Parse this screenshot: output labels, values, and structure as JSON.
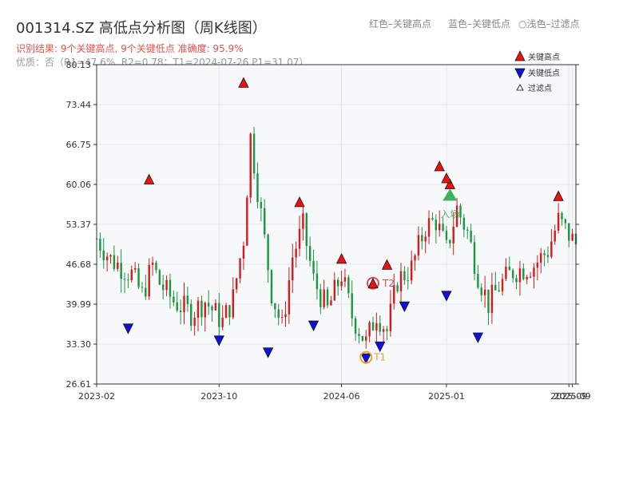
{
  "title": "001314.SZ 高低点分析图（周K线图）",
  "top_legend": {
    "red": "红色–关键高点",
    "blue": "蓝色–关键低点",
    "light": "○浅色–过滤点"
  },
  "result_line": "识别结果: 9个关键高点, 9个关键低点  准确度: 95.9%",
  "detail_line": "优质：否（R1=47.6%, R2=0.78；T1=2024-07-26 P1=31.07）",
  "colors": {
    "up": "#d7191c",
    "down": "#1a9641",
    "high": "#ee1111",
    "low": "#1111dd",
    "t1": "#f0a030",
    "entry": "#2aa84a"
  },
  "chart_data": {
    "type": "candlestick",
    "ylim": [
      26.61,
      80.13
    ],
    "y_ticks": [
      "26.61",
      "33.30",
      "39.99",
      "46.68",
      "53.37",
      "60.06",
      "66.75",
      "73.44",
      "80.13"
    ],
    "x_ticks": [
      {
        "label": "2023-02",
        "date": "2023-02-03"
      },
      {
        "label": "2023-10",
        "date": "2023-10-06"
      },
      {
        "label": "2024-06",
        "date": "2024-06-07"
      },
      {
        "label": "2025-01",
        "date": "2025-01-03"
      },
      {
        "label": "2025-09",
        "date": "2025-09-05"
      },
      {
        "label": "2025-09",
        "date": "2025-09-12"
      }
    ],
    "x_range": [
      "2023-02-03",
      "2025-09-19"
    ],
    "close_anchors": [
      [
        "2023-02-03",
        51.0
      ],
      [
        "2023-03-03",
        47.5
      ],
      [
        "2023-04-14",
        45.0
      ],
      [
        "2023-05-05",
        41.5
      ],
      [
        "2023-05-26",
        46.5
      ],
      [
        "2023-06-09",
        43.5
      ],
      [
        "2023-07-07",
        40.5
      ],
      [
        "2023-08-11",
        38.5
      ],
      [
        "2023-09-08",
        40.5
      ],
      [
        "2023-10-13",
        37.0
      ],
      [
        "2023-11-03",
        41.0
      ],
      [
        "2023-11-24",
        51.0
      ],
      [
        "2023-12-08",
        68.0
      ],
      [
        "2023-12-29",
        55.0
      ],
      [
        "2024-01-19",
        42.0
      ],
      [
        "2024-02-09",
        36.0
      ],
      [
        "2024-03-01",
        48.0
      ],
      [
        "2024-03-22",
        53.0
      ],
      [
        "2024-04-12",
        44.0
      ],
      [
        "2024-05-10",
        39.0
      ],
      [
        "2024-06-07",
        45.0
      ],
      [
        "2024-06-28",
        38.0
      ],
      [
        "2024-07-26",
        33.5
      ],
      [
        "2024-08-16",
        38.5
      ],
      [
        "2024-09-06",
        35.5
      ],
      [
        "2024-09-27",
        44.0
      ],
      [
        "2024-10-25",
        46.0
      ],
      [
        "2024-11-22",
        53.0
      ],
      [
        "2024-12-13",
        54.0
      ],
      [
        "2025-01-03",
        49.0
      ],
      [
        "2025-01-24",
        56.0
      ],
      [
        "2025-02-14",
        52.0
      ],
      [
        "2025-03-07",
        45.0
      ],
      [
        "2025-03-28",
        40.0
      ],
      [
        "2025-04-18",
        43.0
      ],
      [
        "2025-05-16",
        45.5
      ],
      [
        "2025-06-27",
        46.5
      ],
      [
        "2025-07-25",
        49.0
      ],
      [
        "2025-08-15",
        54.0
      ],
      [
        "2025-09-19",
        50.0
      ]
    ],
    "key_highs": [
      {
        "date": "2023-05-19",
        "price": 60.8
      },
      {
        "date": "2023-11-24",
        "price": 77.0
      },
      {
        "date": "2024-03-15",
        "price": 57.0
      },
      {
        "date": "2024-06-07",
        "price": 47.5
      },
      {
        "date": "2024-09-06",
        "price": 46.5
      },
      {
        "date": "2024-12-20",
        "price": 63.0
      },
      {
        "date": "2025-01-10",
        "price": 60.0
      },
      {
        "date": "2025-08-15",
        "price": 58.0
      },
      {
        "date": "2025-01-03",
        "price": 61.0
      }
    ],
    "key_lows": [
      {
        "date": "2023-04-07",
        "price": 36.0
      },
      {
        "date": "2023-10-06",
        "price": 34.0
      },
      {
        "date": "2024-01-12",
        "price": 32.0
      },
      {
        "date": "2024-04-12",
        "price": 36.5
      },
      {
        "date": "2024-08-23",
        "price": 33.0
      },
      {
        "date": "2024-10-11",
        "price": 39.7
      },
      {
        "date": "2025-01-03",
        "price": 41.5
      },
      {
        "date": "2025-03-07",
        "price": 34.5
      },
      {
        "date": "2024-07-26",
        "price": 31.0
      }
    ],
    "t1": {
      "date": "2024-07-26",
      "price": 31.07,
      "label": "T1"
    },
    "t2": {
      "date": "2024-08-09",
      "price": 43.5,
      "label": "T2"
    },
    "entry": {
      "date": "2025-01-10",
      "price": 58.0,
      "label": "入场"
    },
    "legend": [
      "关键高点",
      "关键低点",
      "过滤点"
    ],
    "grid": true
  }
}
